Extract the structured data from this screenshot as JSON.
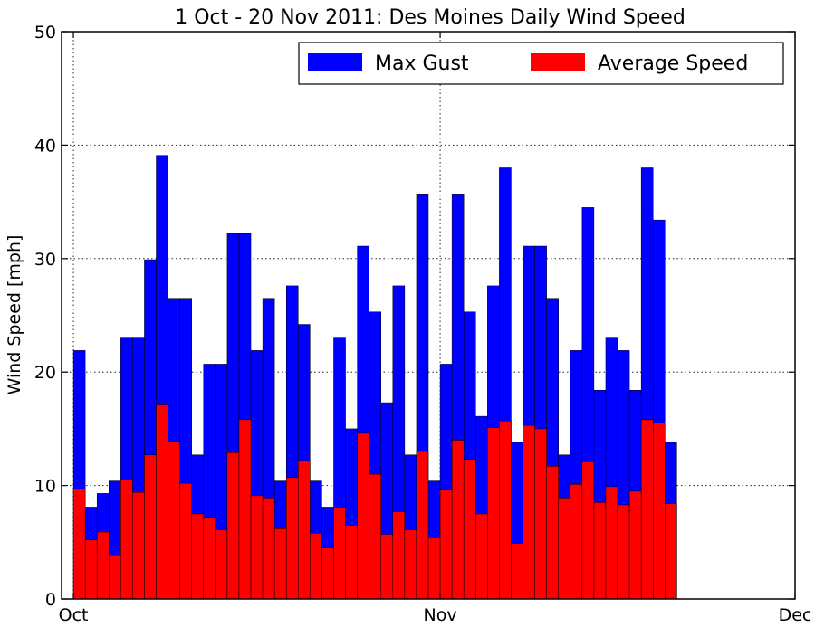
{
  "chart_data": {
    "type": "bar",
    "title": "1 Oct - 20 Nov 2011: Des Moines Daily Wind Speed",
    "xlabel": "",
    "ylabel": "Wind Speed [mph]",
    "ylim": [
      0,
      50
    ],
    "yticks": [
      0,
      10,
      20,
      30,
      40,
      50
    ],
    "xlim": [
      "2011-09-30",
      "2011-12-01"
    ],
    "xticks": [
      {
        "date": "2011-10-01",
        "label": "Oct"
      },
      {
        "date": "2011-11-01",
        "label": "Nov"
      },
      {
        "date": "2011-12-01",
        "label": "Dec"
      }
    ],
    "grid": true,
    "legend_position": "top-right",
    "dates": [
      "2011-10-01",
      "2011-10-02",
      "2011-10-03",
      "2011-10-04",
      "2011-10-05",
      "2011-10-06",
      "2011-10-07",
      "2011-10-08",
      "2011-10-09",
      "2011-10-10",
      "2011-10-11",
      "2011-10-12",
      "2011-10-13",
      "2011-10-14",
      "2011-10-15",
      "2011-10-16",
      "2011-10-17",
      "2011-10-18",
      "2011-10-19",
      "2011-10-20",
      "2011-10-21",
      "2011-10-22",
      "2011-10-23",
      "2011-10-24",
      "2011-10-25",
      "2011-10-26",
      "2011-10-27",
      "2011-10-28",
      "2011-10-29",
      "2011-10-30",
      "2011-10-31",
      "2011-11-01",
      "2011-11-02",
      "2011-11-03",
      "2011-11-04",
      "2011-11-05",
      "2011-11-06",
      "2011-11-07",
      "2011-11-08",
      "2011-11-09",
      "2011-11-10",
      "2011-11-11",
      "2011-11-12",
      "2011-11-13",
      "2011-11-14",
      "2011-11-15",
      "2011-11-16",
      "2011-11-17",
      "2011-11-18",
      "2011-11-19",
      "2011-11-20"
    ],
    "series": [
      {
        "name": "Max Gust",
        "color": "#0000ff",
        "values": [
          21.9,
          8.1,
          9.3,
          10.4,
          23.0,
          23.0,
          29.9,
          39.1,
          26.5,
          26.5,
          12.7,
          20.7,
          20.7,
          32.2,
          32.2,
          21.9,
          26.5,
          10.4,
          27.6,
          24.2,
          10.4,
          8.1,
          23.0,
          15.0,
          31.1,
          25.3,
          17.3,
          27.6,
          12.7,
          35.7,
          10.4,
          20.7,
          35.7,
          25.3,
          16.1,
          27.6,
          38.0,
          13.8,
          31.1,
          31.1,
          26.5,
          12.7,
          21.9,
          34.5,
          18.4,
          23.0,
          21.9,
          18.4,
          38.0,
          33.4,
          13.8
        ]
      },
      {
        "name": "Average Speed",
        "color": "#ff0000",
        "values": [
          9.7,
          5.2,
          5.9,
          3.9,
          10.5,
          9.4,
          12.7,
          17.1,
          13.9,
          10.2,
          7.5,
          7.2,
          6.1,
          12.9,
          15.8,
          9.1,
          8.9,
          6.2,
          10.7,
          12.2,
          5.8,
          4.5,
          8.1,
          6.5,
          14.6,
          11.0,
          5.7,
          7.7,
          6.1,
          13.0,
          5.4,
          9.6,
          14.0,
          12.3,
          7.5,
          15.1,
          15.7,
          4.9,
          15.3,
          15.0,
          11.7,
          8.9,
          10.1,
          12.1,
          8.5,
          9.9,
          8.3,
          9.5,
          15.8,
          15.5,
          8.4
        ]
      }
    ]
  }
}
